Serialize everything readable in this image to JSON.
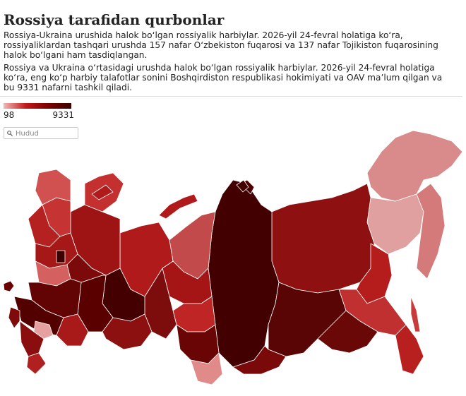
{
  "title": "Rossiya tarafidan qurbonlar",
  "paragraphs": [
    "Rossiya-Ukraina urushida halok boʻlgan rossiyalik harbiylar. 2026-yil 24-fevral holatiga koʻra, rossiyaliklardan tashqari urushda 157 nafar Oʻzbekiston fuqarosi va 137 nafar Tojikiston fuqarosining halok boʻlgani ham tasdiqlangan.",
    "Rossiya va Ukraina oʻrtasidagi urushda halok boʻlgan rossiyalik harbiylar. 2026-yil 24-fevral holatiga koʻra, eng koʻp harbiy talafotlar sonini Boshqirdiston respublikasi hokimiyati va OAV maʼlum qilgan va bu 9331 nafarni tashkil qiladi."
  ],
  "legend": {
    "min": 98,
    "max": 9331
  },
  "search_placeholder": "Hudud"
}
